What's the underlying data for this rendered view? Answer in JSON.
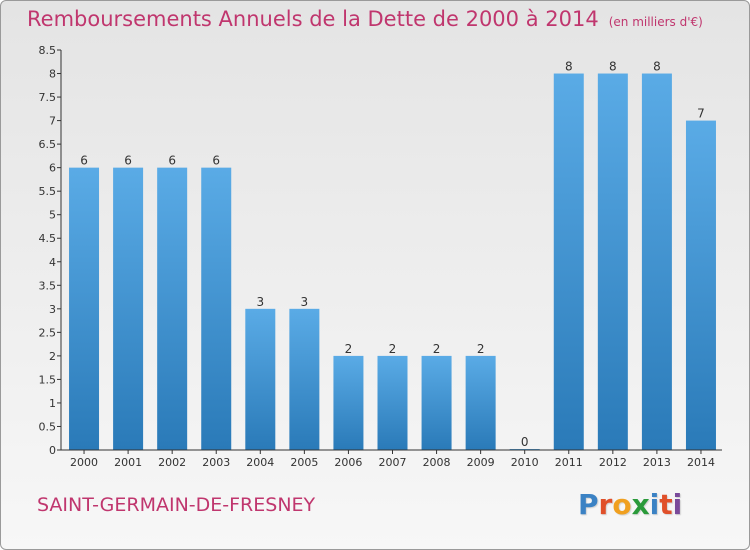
{
  "page": {
    "title": "Remboursements Annuels de la Dette de 2000 à 2014",
    "unit_note": "(en milliers d'€)",
    "town": "SAINT-GERMAIN-DE-FRESNEY",
    "logo": {
      "letters": [
        "P",
        "r",
        "o",
        "x",
        "i",
        "t",
        "i"
      ],
      "colors": [
        "#3b82c4",
        "#e0502a",
        "#f0a020",
        "#2a9a3a",
        "#3b82c4",
        "#e0502a",
        "#7a4a9a"
      ]
    }
  },
  "chart_data": {
    "type": "bar",
    "categories": [
      "2000",
      "2001",
      "2002",
      "2003",
      "2004",
      "2005",
      "2006",
      "2007",
      "2008",
      "2009",
      "2010",
      "2011",
      "2012",
      "2013",
      "2014"
    ],
    "values": [
      6,
      6,
      6,
      6,
      3,
      3,
      2,
      2,
      2,
      2,
      0,
      8,
      8,
      8,
      7
    ],
    "ylim": [
      0,
      8.5
    ],
    "yticks": [
      "0",
      "0.5",
      "1",
      "1.5",
      "2",
      "2.5",
      "3",
      "3.5",
      "4",
      "4.5",
      "5",
      "5.5",
      "6",
      "6.5",
      "7",
      "7.5",
      "8",
      "8.5"
    ],
    "grid": false,
    "colors": {
      "bar_light": "#5aabe6",
      "bar_dark": "#2a7ab8",
      "axis": "#333333"
    }
  }
}
